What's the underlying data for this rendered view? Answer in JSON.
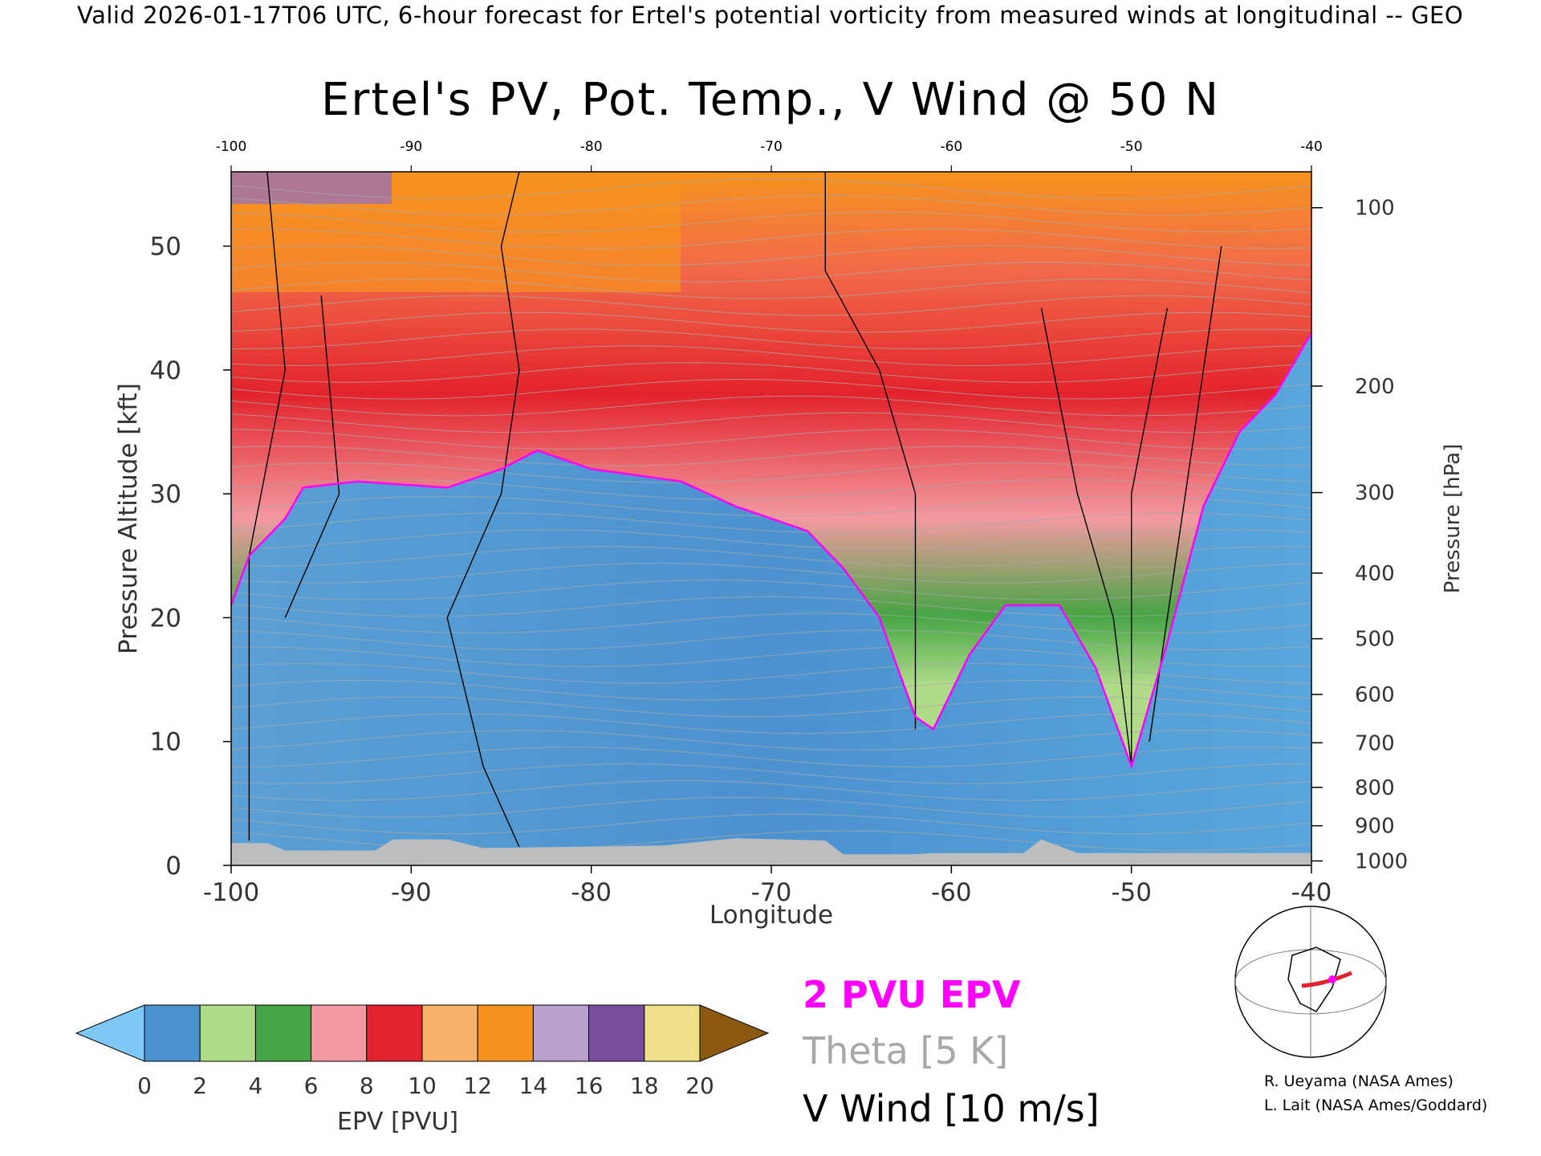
{
  "header": {
    "caption": "Valid 2026-01-17T06 UTC, 6-hour forecast for Ertel's potential vorticity from measured winds at longitudinal -- GEO"
  },
  "chart_data": {
    "type": "heatmap",
    "title": "Ertel's PV, Pot. Temp., V Wind @ 50 N",
    "xlabel": "Longitude",
    "ylabel": "Pressure Altitude [kft]",
    "y2label": "Pressure [hPa]",
    "xlim": [
      -100,
      -40
    ],
    "ylim": [
      0,
      56
    ],
    "x_ticks": [
      "-100",
      "-90",
      "-80",
      "-70",
      "-60",
      "-50",
      "-40"
    ],
    "x_ticks_top": [
      "-100",
      "-90",
      "-80",
      "-70",
      "-60",
      "-50",
      "-40"
    ],
    "y_ticks": [
      "0",
      "10",
      "20",
      "30",
      "40",
      "50"
    ],
    "pressure_ticks": [
      {
        "label": "1000",
        "kft": 0.36
      },
      {
        "label": "900",
        "kft": 3.2
      },
      {
        "label": "800",
        "kft": 6.3
      },
      {
        "label": "700",
        "kft": 9.9
      },
      {
        "label": "600",
        "kft": 13.8
      },
      {
        "label": "500",
        "kft": 18.3
      },
      {
        "label": "400",
        "kft": 23.6
      },
      {
        "label": "300",
        "kft": 30.1
      },
      {
        "label": "200",
        "kft": 38.7
      },
      {
        "label": "100",
        "kft": 53.1
      }
    ],
    "tropopause_2pvu": [
      {
        "x": -100,
        "y": 21
      },
      {
        "x": -99,
        "y": 25
      },
      {
        "x": -97,
        "y": 28
      },
      {
        "x": -96,
        "y": 30.5
      },
      {
        "x": -93,
        "y": 31
      },
      {
        "x": -88,
        "y": 30.5
      },
      {
        "x": -85,
        "y": 32
      },
      {
        "x": -83,
        "y": 33.5
      },
      {
        "x": -80,
        "y": 32
      },
      {
        "x": -75,
        "y": 31
      },
      {
        "x": -72,
        "y": 29
      },
      {
        "x": -68,
        "y": 27
      },
      {
        "x": -66,
        "y": 24
      },
      {
        "x": -64,
        "y": 20
      },
      {
        "x": -62,
        "y": 12
      },
      {
        "x": -61,
        "y": 11
      },
      {
        "x": -59,
        "y": 17
      },
      {
        "x": -57,
        "y": 21
      },
      {
        "x": -54,
        "y": 21
      },
      {
        "x": -52,
        "y": 16
      },
      {
        "x": -50,
        "y": 8
      },
      {
        "x": -48,
        "y": 18
      },
      {
        "x": -46,
        "y": 29
      },
      {
        "x": -44,
        "y": 35
      },
      {
        "x": -42,
        "y": 38
      },
      {
        "x": -40,
        "y": 43
      }
    ],
    "colorbar": {
      "label": "EPV [PVU]",
      "ticks": [
        "0",
        "2",
        "4",
        "6",
        "8",
        "10",
        "12",
        "14",
        "16",
        "18",
        "20"
      ],
      "min": 0,
      "max": 20,
      "step": 2,
      "extend": "both",
      "under_color": "#7ec8f5",
      "over_color": "#8b5a10"
    },
    "legend": {
      "epv_contour": "2 PVU EPV",
      "theta": "Theta [5 K]",
      "vwind": "V Wind [10 m/s]"
    },
    "colors": {
      "epv_contour": "#ff00ff",
      "theta": "#a8a8a8",
      "vwind": "#000000",
      "terrain": "#bdbdbd"
    }
  },
  "credits": {
    "line1": "R. Ueyama (NASA Ames)",
    "line2": "L. Lait (NASA Ames/Goddard)"
  }
}
